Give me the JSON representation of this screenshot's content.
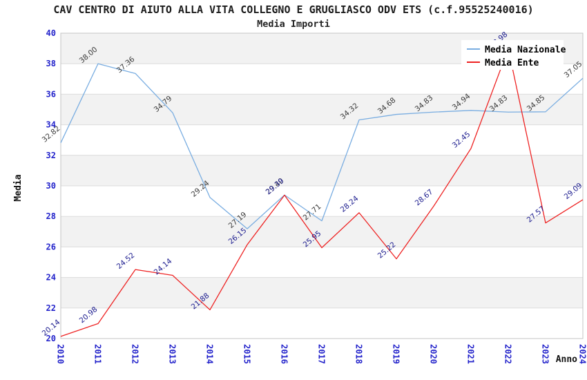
{
  "header": {
    "title": "CAV CENTRO DI AIUTO ALLA VITA COLLEGNO E GRUGLIASCO ODV ETS (c.f.95525240016)",
    "subtitle": "Media Importi"
  },
  "chart_data": {
    "type": "line",
    "title": "CAV CENTRO DI AIUTO ALLA VITA COLLEGNO E GRUGLIASCO ODV ETS (c.f.95525240016)",
    "subtitle": "Media Importi",
    "xlabel": "Anno",
    "ylabel": "Media",
    "ylim": [
      20,
      40
    ],
    "ytick_step": 2,
    "grid": "horizontal gridlines every 2 units with alternating light-gray bands",
    "legend_position": "top-right",
    "categories": [
      "2010",
      "2011",
      "2012",
      "2013",
      "2014",
      "2015",
      "2016",
      "2017",
      "2018",
      "2019",
      "2020",
      "2021",
      "2022",
      "2023",
      "2024"
    ],
    "series": [
      {
        "name": "Media Nazionale",
        "color": "#79ade1",
        "label_color": "#3a3a3a",
        "values": [
          32.82,
          38.0,
          37.36,
          34.79,
          29.24,
          27.19,
          29.4,
          27.71,
          34.32,
          34.68,
          34.83,
          34.94,
          34.83,
          34.85,
          37.05
        ]
      },
      {
        "name": "Media Ente",
        "color": "#ee2222",
        "label_color": "#1b1b8e",
        "values": [
          20.14,
          20.98,
          24.52,
          24.14,
          21.88,
          26.15,
          29.39,
          25.95,
          28.24,
          25.22,
          28.67,
          32.45,
          38.98,
          27.57,
          29.09
        ]
      }
    ]
  },
  "colors": {
    "tick_label": "#2323cb",
    "band": "#f2f2f2",
    "grid_line": "#dcdcdc",
    "plot_border": "#c4c4c4",
    "background": "#ffffff",
    "title_text": "#1a1a1a"
  }
}
